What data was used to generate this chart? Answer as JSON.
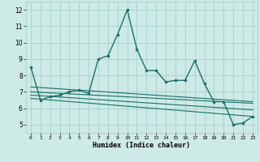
{
  "xlabel": "Humidex (Indice chaleur)",
  "ylabel": "",
  "bg_color": "#ceeae6",
  "grid_color": "#a8d4cf",
  "line_color": "#1a7068",
  "xlim": [
    -0.5,
    23.5
  ],
  "ylim": [
    4.5,
    12.5
  ],
  "yticks": [
    5,
    6,
    7,
    8,
    9,
    10,
    11,
    12
  ],
  "xticks": [
    0,
    1,
    2,
    3,
    4,
    5,
    6,
    7,
    8,
    9,
    10,
    11,
    12,
    13,
    14,
    15,
    16,
    17,
    18,
    19,
    20,
    21,
    22,
    23
  ],
  "main_x": [
    0,
    1,
    2,
    3,
    4,
    5,
    6,
    7,
    8,
    9,
    10,
    11,
    12,
    13,
    14,
    15,
    16,
    17,
    18,
    19,
    20,
    21,
    22,
    23
  ],
  "main_y": [
    8.5,
    6.5,
    6.7,
    6.8,
    7.0,
    7.1,
    6.9,
    9.0,
    9.2,
    10.5,
    12.0,
    9.6,
    8.3,
    8.3,
    7.6,
    7.7,
    7.7,
    8.9,
    7.5,
    6.4,
    6.4,
    5.0,
    5.1,
    5.5
  ],
  "ref_lines": [
    {
      "x0": 0,
      "y0": 7.0,
      "x1": 23,
      "y1": 6.3
    },
    {
      "x0": 0,
      "y0": 6.8,
      "x1": 23,
      "y1": 5.9
    },
    {
      "x0": 0,
      "y0": 6.6,
      "x1": 23,
      "y1": 5.5
    },
    {
      "x0": 0,
      "y0": 7.3,
      "x1": 23,
      "y1": 6.4
    }
  ]
}
